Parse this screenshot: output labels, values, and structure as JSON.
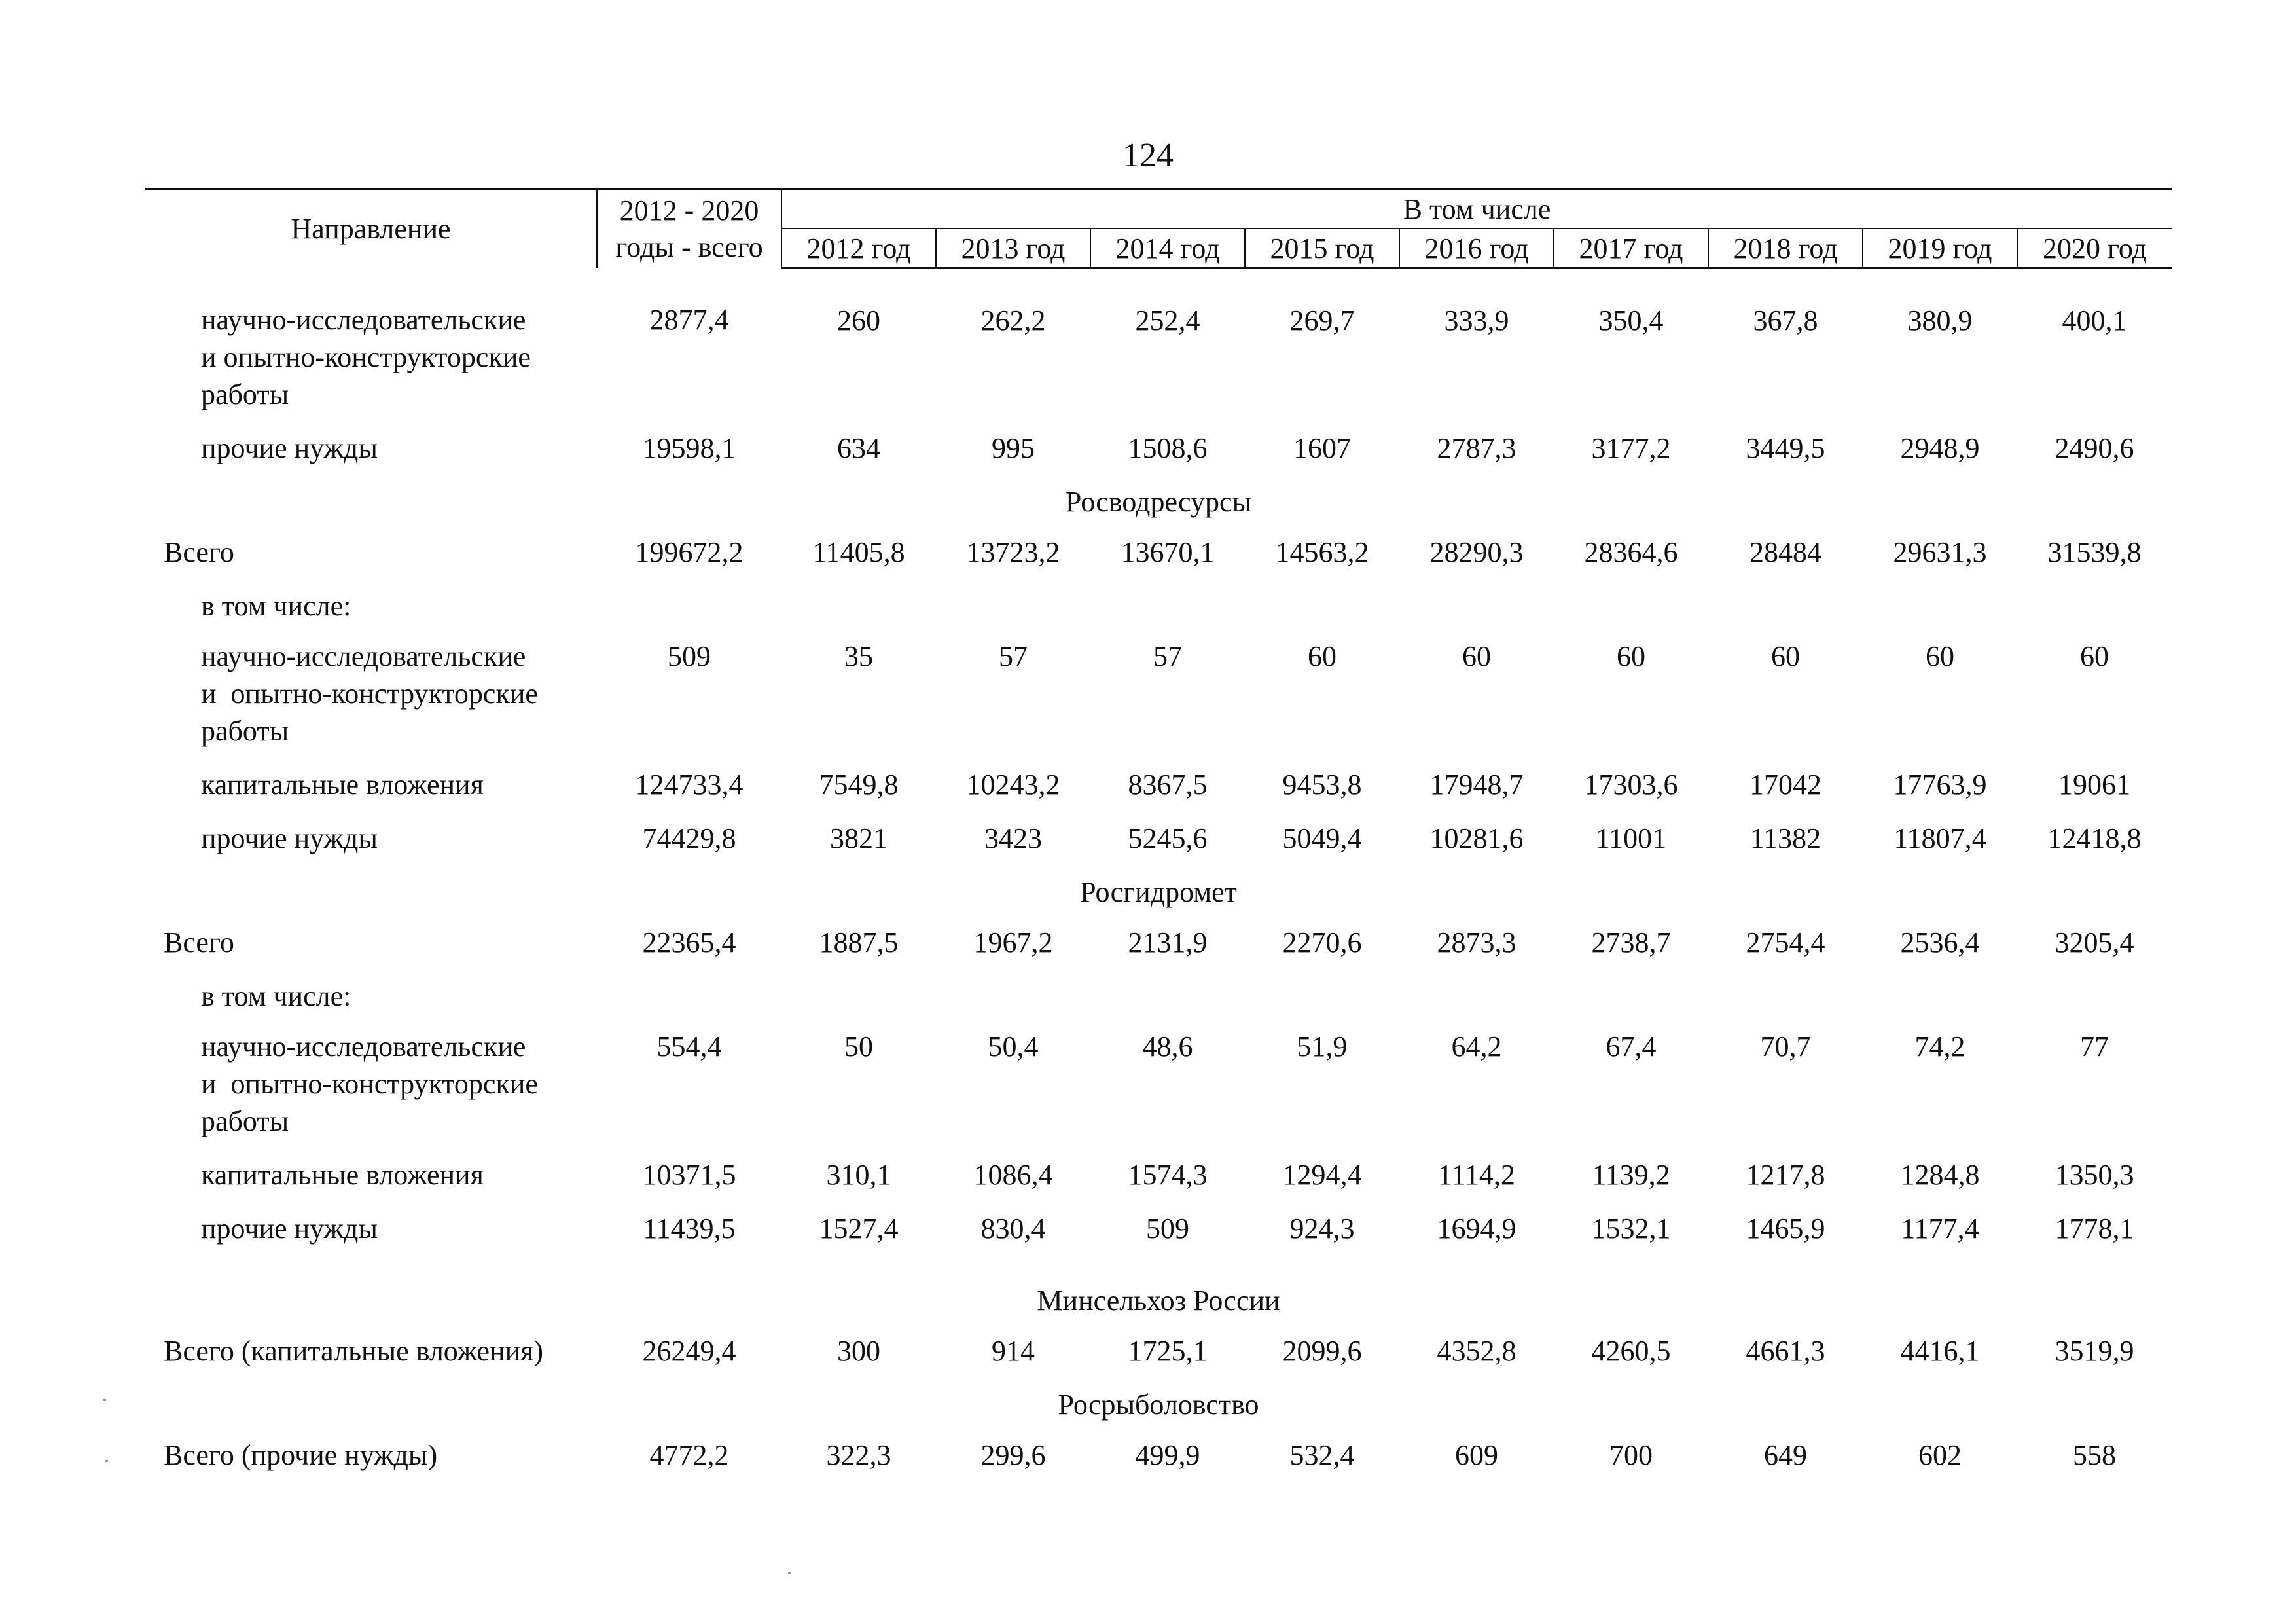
{
  "page_number": "124",
  "header": {
    "direction": "Направление",
    "total_line1": "2012 - 2020",
    "total_line2": "годы - всего",
    "group_label": "В том числе",
    "years": [
      "2012 год",
      "2013 год",
      "2014 год",
      "2015 год",
      "2016 год",
      "2017 год",
      "2018 год",
      "2019 год",
      "2020 год"
    ]
  },
  "rows": [
    {
      "type": "data",
      "level": 1,
      "label_lines": [
        "научно-исследовательские",
        "и опытно-конструкторские",
        "работы"
      ],
      "total": "2877,4",
      "values": [
        "260",
        "262,2",
        "252,4",
        "269,7",
        "333,9",
        "350,4",
        "367,8",
        "380,9",
        "400,1"
      ]
    },
    {
      "type": "data",
      "level": 1,
      "label_lines": [
        "прочие нужды"
      ],
      "total": "19598,1",
      "values": [
        "634",
        "995",
        "1508,6",
        "1607",
        "2787,3",
        "3177,2",
        "3449,5",
        "2948,9",
        "2490,6"
      ]
    },
    {
      "type": "section",
      "label": "Росводресурсы"
    },
    {
      "type": "data",
      "level": 0,
      "label_lines": [
        "Всего"
      ],
      "total": "199672,2",
      "values": [
        "11405,8",
        "13723,2",
        "13670,1",
        "14563,2",
        "28290,3",
        "28364,6",
        "28484",
        "29631,3",
        "31539,8"
      ]
    },
    {
      "type": "label",
      "level": 1,
      "label_lines": [
        "в том числе:"
      ]
    },
    {
      "type": "data",
      "level": 1,
      "label_lines": [
        "научно-исследовательские",
        "и  опытно-конструкторские",
        "работы"
      ],
      "total": "509",
      "values": [
        "35",
        "57",
        "57",
        "60",
        "60",
        "60",
        "60",
        "60",
        "60"
      ]
    },
    {
      "type": "data",
      "level": 1,
      "label_lines": [
        "капитальные вложения"
      ],
      "total": "124733,4",
      "values": [
        "7549,8",
        "10243,2",
        "8367,5",
        "9453,8",
        "17948,7",
        "17303,6",
        "17042",
        "17763,9",
        "19061"
      ]
    },
    {
      "type": "data",
      "level": 1,
      "label_lines": [
        "прочие нужды"
      ],
      "total": "74429,8",
      "values": [
        "3821",
        "3423",
        "5245,6",
        "5049,4",
        "10281,6",
        "11001",
        "11382",
        "11807,4",
        "12418,8"
      ]
    },
    {
      "type": "section",
      "label": "Росгидромет"
    },
    {
      "type": "data",
      "level": 0,
      "label_lines": [
        "Всего"
      ],
      "total": "22365,4",
      "values": [
        "1887,5",
        "1967,2",
        "2131,9",
        "2270,6",
        "2873,3",
        "2738,7",
        "2754,4",
        "2536,4",
        "3205,4"
      ]
    },
    {
      "type": "label",
      "level": 1,
      "label_lines": [
        "в том числе:"
      ]
    },
    {
      "type": "data",
      "level": 1,
      "label_lines": [
        "научно-исследовательские",
        "и  опытно-конструкторские",
        "работы"
      ],
      "total": "554,4",
      "values": [
        "50",
        "50,4",
        "48,6",
        "51,9",
        "64,2",
        "67,4",
        "70,7",
        "74,2",
        "77"
      ]
    },
    {
      "type": "data",
      "level": 1,
      "label_lines": [
        "капитальные вложения"
      ],
      "total": "10371,5",
      "values": [
        "310,1",
        "1086,4",
        "1574,3",
        "1294,4",
        "1114,2",
        "1139,2",
        "1217,8",
        "1284,8",
        "1350,3"
      ]
    },
    {
      "type": "data",
      "level": 1,
      "label_lines": [
        "прочие нужды"
      ],
      "total": "11439,5",
      "values": [
        "1527,4",
        "830,4",
        "509",
        "924,3",
        "1694,9",
        "1532,1",
        "1465,9",
        "1177,4",
        "1778,1"
      ]
    },
    {
      "type": "section",
      "label": "Минсельхоз России",
      "space_before": true
    },
    {
      "type": "data",
      "level": 0,
      "label_lines": [
        "Всего (капитальные вложения)"
      ],
      "total": "26249,4",
      "values": [
        "300",
        "914",
        "1725,1",
        "2099,6",
        "4352,8",
        "4260,5",
        "4661,3",
        "4416,1",
        "3519,9"
      ]
    },
    {
      "type": "section",
      "label": "Росрыболовство"
    },
    {
      "type": "data",
      "level": 0,
      "label_lines": [
        "Всего (прочие нужды)"
      ],
      "total": "4772,2",
      "values": [
        "322,3",
        "299,6",
        "499,9",
        "532,4",
        "609",
        "700",
        "649",
        "602",
        "558"
      ]
    }
  ]
}
